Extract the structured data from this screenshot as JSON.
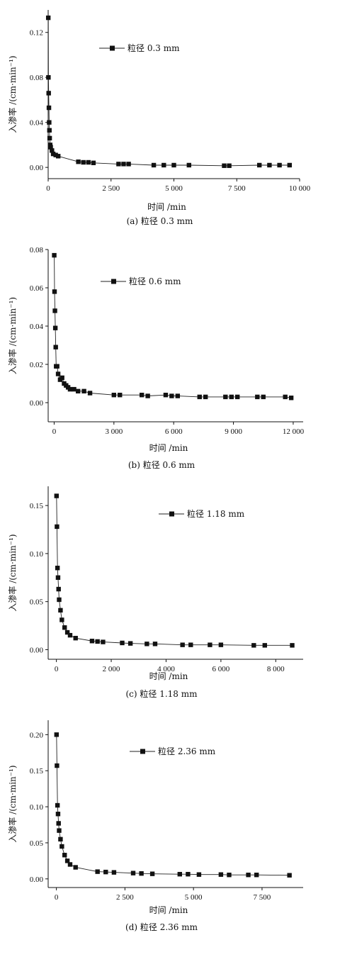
{
  "chart_data": [
    {
      "type": "line",
      "caption": "(a) 粒径 0.3 mm",
      "xlabel": "时间 /min",
      "ylabel": "入渗率 /(cm·min⁻¹)",
      "xlim": [
        0,
        10000
      ],
      "ylim": [
        -0.01,
        0.14
      ],
      "xticks": [
        0,
        2500,
        5000,
        7500,
        10000
      ],
      "xtick_labels": [
        "0",
        "2 500",
        "5 000",
        "7 500",
        "10 000"
      ],
      "yticks": [
        0,
        0.04,
        0.08,
        0.12
      ],
      "ytick_labels": [
        "0.00",
        "0.04",
        "0.08",
        "0.12"
      ],
      "legend": "top-center",
      "series": [
        {
          "name": "粒径 0.3 mm",
          "x": [
            5,
            10,
            20,
            30,
            40,
            50,
            60,
            80,
            100,
            150,
            200,
            300,
            400,
            1200,
            1400,
            1600,
            1800,
            2800,
            3000,
            3200,
            4200,
            4600,
            5000,
            5600,
            7000,
            7200,
            8400,
            8800,
            9200,
            9600
          ],
          "y": [
            0.133,
            0.08,
            0.066,
            0.053,
            0.04,
            0.033,
            0.026,
            0.02,
            0.018,
            0.015,
            0.012,
            0.011,
            0.01,
            0.005,
            0.0045,
            0.0045,
            0.004,
            0.003,
            0.003,
            0.003,
            0.002,
            0.002,
            0.002,
            0.002,
            0.0015,
            0.0015,
            0.002,
            0.002,
            0.002,
            0.002
          ]
        }
      ]
    },
    {
      "type": "line",
      "caption": "(b) 粒径 0.6 mm",
      "xlabel": "时间 /min",
      "ylabel": "入渗率 /(cm·min⁻¹)",
      "xlim": [
        -300,
        12500
      ],
      "ylim": [
        -0.01,
        0.08
      ],
      "xticks": [
        0,
        3000,
        6000,
        9000,
        12000
      ],
      "xtick_labels": [
        "0",
        "3 000",
        "6 000",
        "9 000",
        "12 000"
      ],
      "yticks": [
        0,
        0.02,
        0.04,
        0.06,
        0.08
      ],
      "ytick_labels": [
        "0.00",
        "0.02",
        "0.04",
        "0.06",
        "0.08"
      ],
      "legend": "top-center",
      "series": [
        {
          "name": "粒径 0.6 mm",
          "x": [
            5,
            20,
            40,
            60,
            80,
            100,
            150,
            200,
            300,
            400,
            500,
            600,
            700,
            800,
            1000,
            1200,
            1500,
            1800,
            3000,
            3300,
            4400,
            4700,
            5600,
            5900,
            6200,
            7300,
            7600,
            8600,
            8900,
            9200,
            10200,
            10500,
            11600,
            11900
          ],
          "y": [
            0.077,
            0.058,
            0.048,
            0.039,
            0.029,
            0.019,
            0.019,
            0.015,
            0.012,
            0.013,
            0.01,
            0.009,
            0.008,
            0.007,
            0.007,
            0.006,
            0.006,
            0.005,
            0.004,
            0.004,
            0.004,
            0.0035,
            0.004,
            0.0035,
            0.0035,
            0.003,
            0.003,
            0.003,
            0.003,
            0.003,
            0.003,
            0.003,
            0.003,
            0.0025
          ]
        }
      ]
    },
    {
      "type": "line",
      "caption": "(c) 粒径 1.18 mm",
      "xlabel": "时间 /min",
      "ylabel": "入渗率 /(cm·min⁻¹)",
      "xlim": [
        -300,
        9000
      ],
      "ylim": [
        -0.01,
        0.17
      ],
      "xticks": [
        0,
        2000,
        4000,
        6000,
        8000
      ],
      "xtick_labels": [
        "0",
        "2 000",
        "4 000",
        "6 000",
        "8 000"
      ],
      "yticks": [
        0,
        0.05,
        0.1,
        0.15
      ],
      "ytick_labels": [
        "0.00",
        "0.05",
        "0.10",
        "0.15"
      ],
      "legend": "top-right",
      "series": [
        {
          "name": "粒径 1.18 mm",
          "x": [
            5,
            20,
            40,
            60,
            80,
            100,
            150,
            200,
            300,
            400,
            500,
            700,
            1300,
            1500,
            1700,
            2400,
            2700,
            3300,
            3600,
            4600,
            4900,
            5600,
            6000,
            7200,
            7600,
            8600
          ],
          "y": [
            0.16,
            0.128,
            0.085,
            0.075,
            0.063,
            0.052,
            0.041,
            0.031,
            0.023,
            0.018,
            0.015,
            0.012,
            0.009,
            0.0085,
            0.008,
            0.007,
            0.0065,
            0.006,
            0.006,
            0.005,
            0.005,
            0.005,
            0.005,
            0.0045,
            0.0045,
            0.0045
          ]
        }
      ]
    },
    {
      "type": "line",
      "caption": "(d) 粒径 2.36 mm",
      "xlabel": "时间 /min",
      "ylabel": "入渗率 /(cm·min⁻¹)",
      "xlim": [
        -300,
        9000
      ],
      "ylim": [
        -0.012,
        0.22
      ],
      "xticks": [
        0,
        2500,
        5000,
        7500
      ],
      "xtick_labels": [
        "0",
        "2 500",
        "5 000",
        "7 500"
      ],
      "yticks": [
        0,
        0.05,
        0.1,
        0.15,
        0.2
      ],
      "ytick_labels": [
        "0.00",
        "0.05",
        "0.10",
        "0.15",
        "0.20"
      ],
      "legend": "top-right",
      "series": [
        {
          "name": "粒径 2.36 mm",
          "x": [
            5,
            20,
            40,
            60,
            80,
            100,
            150,
            200,
            300,
            400,
            500,
            700,
            1500,
            1800,
            2100,
            2800,
            3100,
            3500,
            4500,
            4800,
            5200,
            6000,
            6300,
            7000,
            7300,
            8500
          ],
          "y": [
            0.2,
            0.157,
            0.102,
            0.09,
            0.077,
            0.067,
            0.055,
            0.045,
            0.033,
            0.025,
            0.02,
            0.016,
            0.01,
            0.0095,
            0.009,
            0.008,
            0.0075,
            0.007,
            0.0065,
            0.0065,
            0.006,
            0.006,
            0.0055,
            0.0055,
            0.0055,
            0.005
          ]
        }
      ]
    }
  ]
}
